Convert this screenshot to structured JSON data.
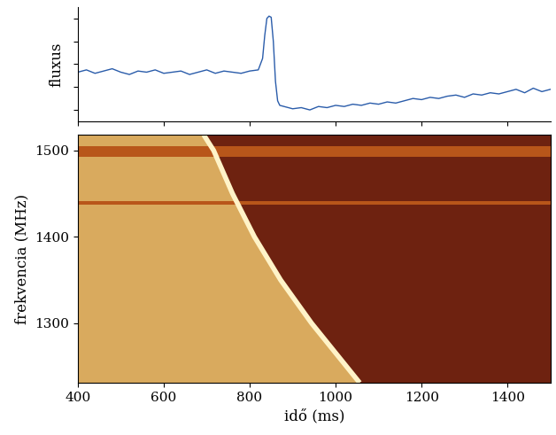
{
  "chart_data": [
    {
      "type": "line",
      "ylabel": "fluxus",
      "x": [
        400,
        420,
        440,
        460,
        480,
        500,
        520,
        540,
        560,
        580,
        600,
        620,
        640,
        660,
        680,
        700,
        720,
        740,
        760,
        780,
        800,
        820,
        830,
        835,
        840,
        845,
        850,
        855,
        860,
        865,
        870,
        880,
        900,
        920,
        940,
        960,
        980,
        1000,
        1020,
        1040,
        1060,
        1080,
        1100,
        1120,
        1140,
        1160,
        1180,
        1200,
        1220,
        1240,
        1260,
        1280,
        1300,
        1320,
        1340,
        1360,
        1380,
        1400,
        1420,
        1440,
        1460,
        1480,
        1500
      ],
      "values": [
        4.3,
        4.5,
        4.2,
        4.4,
        4.6,
        4.3,
        4.1,
        4.4,
        4.3,
        4.5,
        4.2,
        4.3,
        4.4,
        4.1,
        4.3,
        4.5,
        4.2,
        4.4,
        4.3,
        4.2,
        4.4,
        4.5,
        5.5,
        7.5,
        9.0,
        9.2,
        9.1,
        7.0,
        3.5,
        1.8,
        1.4,
        1.3,
        1.1,
        1.2,
        1.0,
        1.3,
        1.2,
        1.4,
        1.3,
        1.5,
        1.4,
        1.6,
        1.5,
        1.7,
        1.6,
        1.8,
        2.0,
        1.9,
        2.1,
        2.0,
        2.2,
        2.3,
        2.1,
        2.4,
        2.3,
        2.5,
        2.4,
        2.6,
        2.8,
        2.5,
        2.9,
        2.6,
        2.8
      ],
      "color": "#2a5caa",
      "xlim": [
        400,
        1500
      ],
      "xticks": [
        400,
        600,
        800,
        1000,
        1200,
        1400
      ],
      "ylim": [
        0,
        10
      ],
      "yticks": [
        1,
        3,
        5,
        7,
        9
      ],
      "tick_labels": false
    },
    {
      "type": "dynamic_spectrum",
      "xlabel": "idő (ms)",
      "ylabel": "frekvencia (MHz)",
      "x": [
        693,
        716,
        760,
        811,
        872,
        944,
        1056
      ],
      "values": [
        1518,
        1500,
        1450,
        1400,
        1350,
        1300,
        1231
      ],
      "color": "#fff3c8",
      "colors": [
        "#d9aa5e",
        "#6e2210"
      ],
      "rfi_bands": [
        {
          "low": 1493,
          "high": 1505,
          "color": "#b8561a"
        },
        {
          "low": 1437,
          "high": 1441,
          "color": "#b8561a"
        }
      ],
      "xlim": [
        400,
        1500
      ],
      "xticks": [
        400,
        600,
        800,
        1000,
        1200,
        1400
      ],
      "ylim": [
        1231,
        1518
      ],
      "yticks": [
        1300,
        1400,
        1500
      ]
    }
  ]
}
